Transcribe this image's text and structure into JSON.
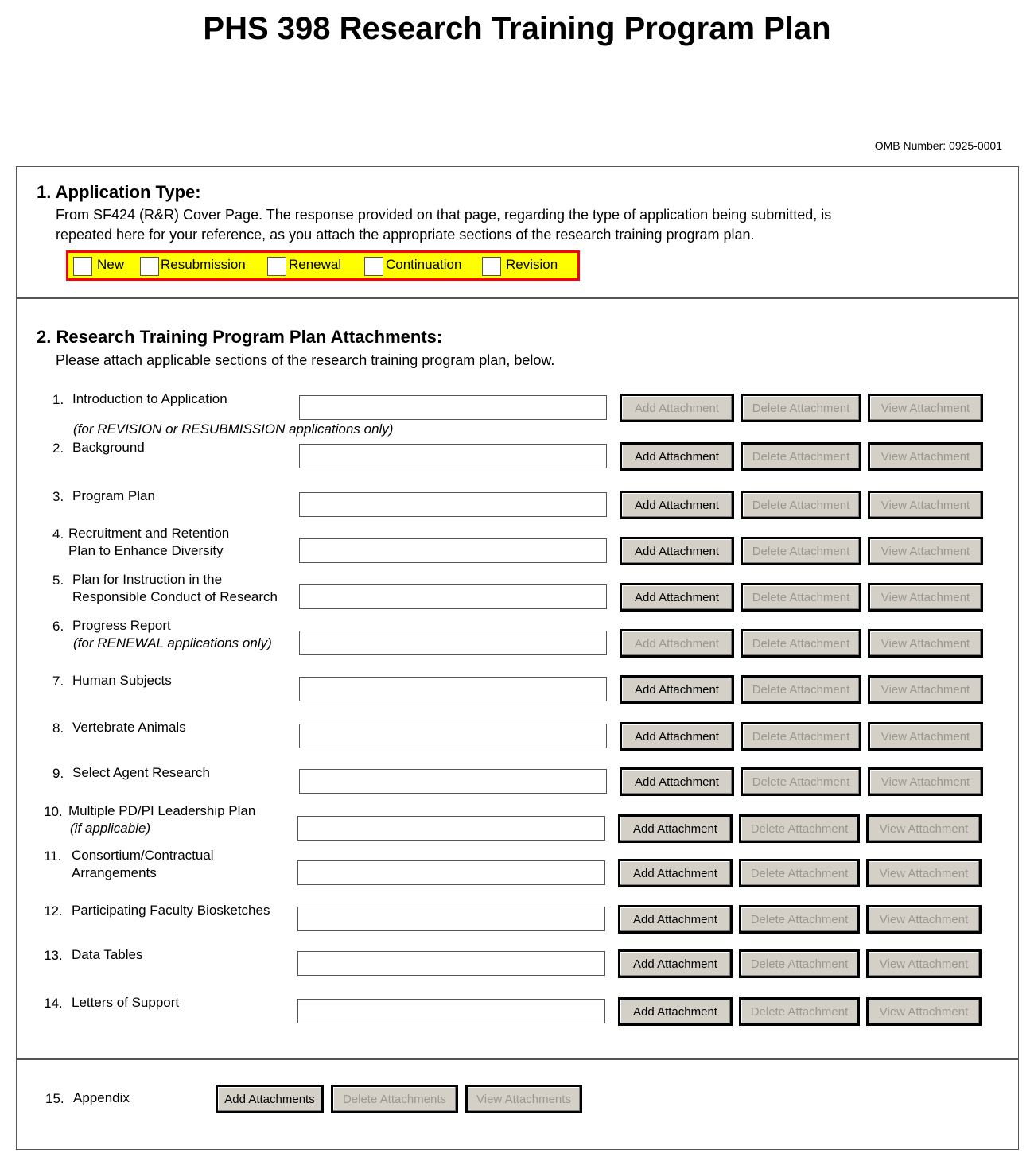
{
  "title": "PHS 398 Research Training Program Plan",
  "omb": "OMB Number: 0925-0001",
  "section1": {
    "heading": "1. Application Type:",
    "text_line1": "From SF424 (R&R) Cover Page.  The response provided on that page, regarding the type of application being submitted, is",
    "text_line2": "repeated here for your reference, as you attach the appropriate sections of the research training program plan.",
    "types": [
      {
        "label": "New",
        "checked": false
      },
      {
        "label": "Resubmission",
        "checked": false
      },
      {
        "label": "Renewal",
        "checked": false
      },
      {
        "label": "Continuation",
        "checked": false
      },
      {
        "label": "Revision",
        "checked": false
      }
    ],
    "highlight_color": "#ffff00",
    "border_color": "#ff0000"
  },
  "section2": {
    "heading": "2. Research Training Program Plan Attachments:",
    "text": "Please attach applicable sections of the research training program plan, below.",
    "buttons": {
      "add": "Add Attachment",
      "delete": "Delete Attachment",
      "view": "View Attachment"
    },
    "items": [
      {
        "num": "1.",
        "line1": "Introduction to Application",
        "line2": "(for REVISION or RESUBMISSION applications only)",
        "italic2": true,
        "add_enabled": false,
        "file": ""
      },
      {
        "num": "2.",
        "line1": "Background",
        "line2": "",
        "add_enabled": true,
        "file": ""
      },
      {
        "num": "3.",
        "line1": "Program Plan",
        "line2": "",
        "add_enabled": true,
        "file": ""
      },
      {
        "num": "4.",
        "line1": "Recruitment and Retention",
        "line2": "Plan to Enhance Diversity",
        "add_enabled": true,
        "file": ""
      },
      {
        "num": "5.",
        "line1": "Plan for Instruction in the",
        "line2": "Responsible Conduct of Research",
        "add_enabled": true,
        "file": ""
      },
      {
        "num": "6.",
        "line1": "Progress Report",
        "line2": "(for RENEWAL applications only)",
        "italic2": true,
        "add_enabled": false,
        "file": ""
      },
      {
        "num": "7.",
        "line1": "Human Subjects",
        "line2": "",
        "add_enabled": true,
        "file": ""
      },
      {
        "num": "8.",
        "line1": "Vertebrate Animals",
        "line2": "",
        "add_enabled": true,
        "file": ""
      },
      {
        "num": "9.",
        "line1": "Select Agent Research",
        "line2": "",
        "add_enabled": true,
        "file": ""
      },
      {
        "num": "10.",
        "line1": "Multiple PD/PI Leadership Plan",
        "line2": "(if applicable)",
        "italic2": true,
        "add_enabled": true,
        "file": ""
      },
      {
        "num": "11.",
        "line1": "Consortium/Contractual",
        "line2": "Arrangements",
        "add_enabled": true,
        "file": ""
      },
      {
        "num": "12.",
        "line1": "Participating Faculty Biosketches",
        "line2": "",
        "add_enabled": true,
        "file": ""
      },
      {
        "num": "13.",
        "line1": "Data Tables",
        "line2": "",
        "add_enabled": true,
        "file": ""
      },
      {
        "num": "14.",
        "line1": "Letters of Support",
        "line2": "",
        "add_enabled": true,
        "file": ""
      }
    ]
  },
  "appendix": {
    "num": "15.",
    "label": "Appendix",
    "add": "Add Attachments",
    "delete": "Delete Attachments",
    "view": "View Attachments"
  }
}
